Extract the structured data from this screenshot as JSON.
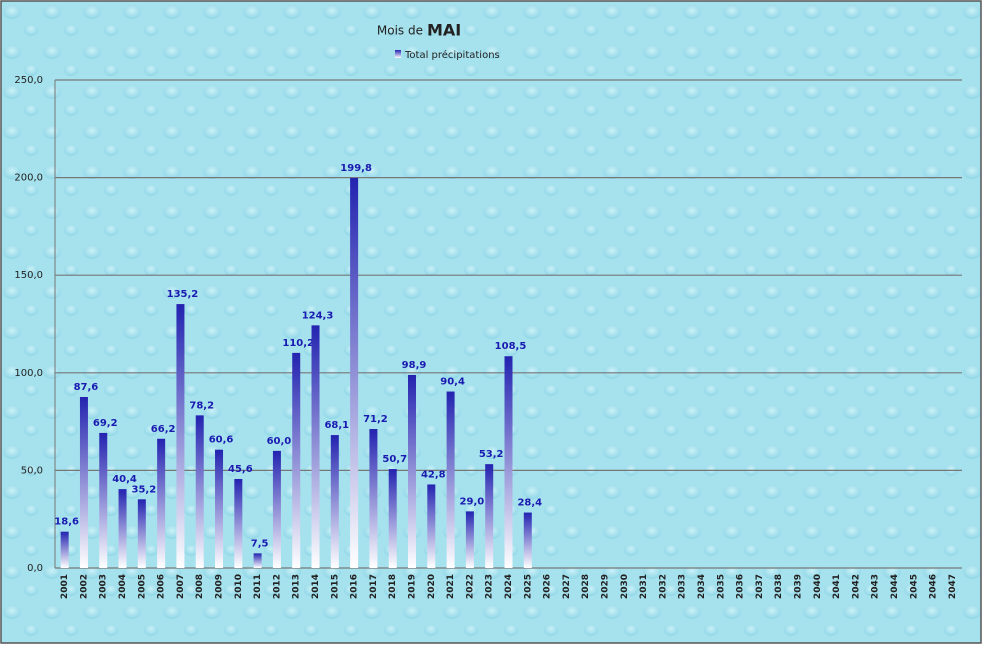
{
  "chart_data": {
    "type": "bar",
    "title_prefix": "Mois de",
    "title": "MAI",
    "categories": [
      "2001",
      "2002",
      "2003",
      "2004",
      "2005",
      "2006",
      "2007",
      "2008",
      "2009",
      "2010",
      "2011",
      "2012",
      "2013",
      "2014",
      "2015",
      "2016",
      "2017",
      "2018",
      "2019",
      "2020",
      "2021",
      "2022",
      "2023",
      "2024",
      "2025",
      "2026",
      "2027",
      "2028",
      "2029",
      "2030",
      "2031",
      "2032",
      "2033",
      "2034",
      "2035",
      "2036",
      "2037",
      "2038",
      "2039",
      "2040",
      "2041",
      "2042",
      "2043",
      "2044",
      "2045",
      "2046",
      "2047"
    ],
    "series": [
      {
        "name": "Total précipitations",
        "color": "#2323b0",
        "values": [
          18.6,
          87.6,
          69.2,
          40.4,
          35.2,
          66.2,
          135.2,
          78.2,
          60.6,
          45.6,
          7.5,
          60.0,
          110.2,
          124.3,
          68.1,
          199.8,
          71.2,
          50.7,
          98.9,
          42.8,
          90.4,
          29.0,
          53.2,
          108.5,
          28.4,
          null,
          null,
          null,
          null,
          null,
          null,
          null,
          null,
          null,
          null,
          null,
          null,
          null,
          null,
          null,
          null,
          null,
          null,
          null,
          null,
          null,
          null
        ],
        "value_labels": [
          "18,6",
          "87,6",
          "69,2",
          "40,4",
          "35,2",
          "66,2",
          "135,2",
          "78,2",
          "60,6",
          "45,6",
          "7,5",
          "60,0",
          "110,2",
          "124,3",
          "68,1",
          "199,8",
          "71,2",
          "50,7",
          "98,9",
          "42,8",
          "90,4",
          "29,0",
          "53,2",
          "108,5",
          "28,4",
          null,
          null,
          null,
          null,
          null,
          null,
          null,
          null,
          null,
          null,
          null,
          null,
          null,
          null,
          null,
          null,
          null,
          null,
          null,
          null,
          null,
          null
        ]
      }
    ],
    "ylim": [
      0,
      250
    ],
    "yticks": [
      {
        "value": 0,
        "label": "0,0"
      },
      {
        "value": 50,
        "label": "50,0"
      },
      {
        "value": 100,
        "label": "100,0"
      },
      {
        "value": 150,
        "label": "150,0"
      },
      {
        "value": 200,
        "label": "200,0"
      },
      {
        "value": 250,
        "label": "250,0"
      }
    ],
    "grid": true
  }
}
